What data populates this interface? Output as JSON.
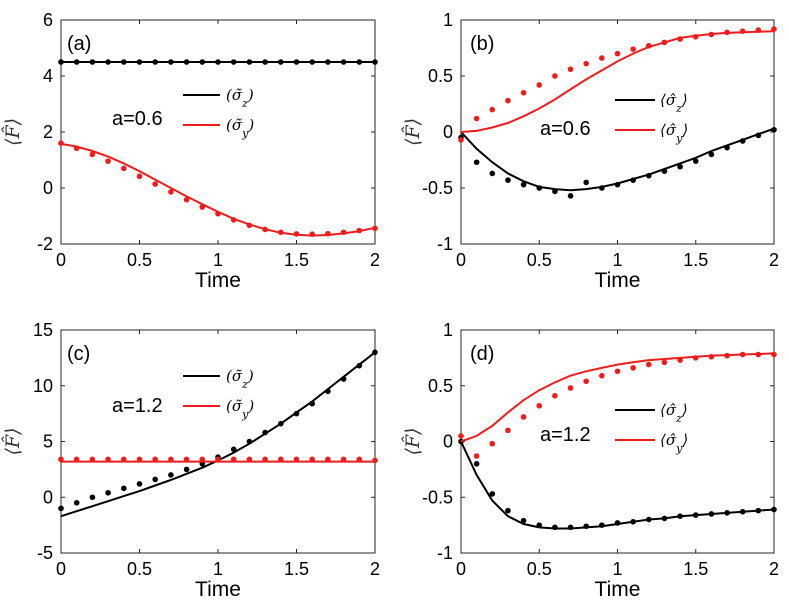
{
  "figure": {
    "xlabel": "Time",
    "ylabel": "⟨F̂⟩"
  },
  "colors": {
    "black": "#000000",
    "red": "#ee1c1c"
  },
  "chart_data": [
    {
      "type": "line",
      "label": "(a)",
      "annotation": "a=0.6",
      "legend_style": "tilde",
      "xlim": [
        0,
        2
      ],
      "ylim": [
        -2,
        6
      ],
      "xticks": [
        0,
        0.5,
        1,
        1.5,
        2
      ],
      "yticks": [
        -2,
        0,
        2,
        4,
        6
      ],
      "xticklabels": [
        "0",
        "0.5",
        "1",
        "1.5",
        "2"
      ],
      "yticklabels": [
        "-2",
        "0",
        "2",
        "4",
        "6"
      ],
      "legend": [
        "(σ̃z)",
        "(σ̃y)"
      ],
      "series": [
        {
          "name": "(σ̃z)",
          "color": "black",
          "line": {
            "x": [
              0,
              0.5,
              1,
              1.5,
              2
            ],
            "y": [
              4.5,
              4.5,
              4.5,
              4.5,
              4.5
            ]
          },
          "points": {
            "x": [
              0,
              0.1,
              0.2,
              0.3,
              0.4,
              0.5,
              0.6,
              0.7,
              0.8,
              0.9,
              1.0,
              1.1,
              1.2,
              1.3,
              1.4,
              1.5,
              1.6,
              1.7,
              1.8,
              1.9,
              2.0
            ],
            "y": [
              4.5,
              4.5,
              4.5,
              4.5,
              4.5,
              4.5,
              4.5,
              4.5,
              4.5,
              4.5,
              4.5,
              4.5,
              4.5,
              4.5,
              4.5,
              4.5,
              4.5,
              4.5,
              4.5,
              4.5,
              4.5
            ]
          }
        },
        {
          "name": "(σ̃y)",
          "color": "red",
          "line": {
            "x": [
              0,
              0.1,
              0.2,
              0.3,
              0.4,
              0.5,
              0.6,
              0.7,
              0.8,
              0.9,
              1.0,
              1.1,
              1.2,
              1.3,
              1.4,
              1.5,
              1.6,
              1.7,
              1.8,
              1.9,
              2.0
            ],
            "y": [
              1.58,
              1.48,
              1.32,
              1.12,
              0.88,
              0.6,
              0.3,
              0.0,
              -0.3,
              -0.58,
              -0.85,
              -1.1,
              -1.3,
              -1.47,
              -1.6,
              -1.67,
              -1.7,
              -1.68,
              -1.62,
              -1.54,
              -1.42
            ]
          },
          "points": {
            "x": [
              0,
              0.1,
              0.2,
              0.3,
              0.4,
              0.5,
              0.6,
              0.7,
              0.8,
              0.9,
              1.0,
              1.1,
              1.2,
              1.3,
              1.4,
              1.5,
              1.6,
              1.7,
              1.8,
              1.9,
              2.0
            ],
            "y": [
              1.6,
              1.42,
              1.2,
              0.96,
              0.7,
              0.42,
              0.14,
              -0.14,
              -0.42,
              -0.68,
              -0.92,
              -1.14,
              -1.33,
              -1.48,
              -1.58,
              -1.64,
              -1.65,
              -1.63,
              -1.58,
              -1.52,
              -1.44
            ]
          }
        }
      ]
    },
    {
      "type": "line",
      "label": "(b)",
      "annotation": "a=0.6",
      "legend_style": "hat",
      "xlim": [
        0,
        2
      ],
      "ylim": [
        -1,
        1
      ],
      "xticks": [
        0,
        0.5,
        1,
        1.5,
        2
      ],
      "yticks": [
        -1,
        -0.5,
        0,
        0.5,
        1
      ],
      "xticklabels": [
        "0",
        "0.5",
        "1",
        "1.5",
        "2"
      ],
      "yticklabels": [
        "-1",
        "-0.5",
        "0",
        "0.5",
        "1"
      ],
      "legend": [
        "⟨σ̂z⟩",
        "⟨σ̂y⟩"
      ],
      "series": [
        {
          "name": "⟨σ̂z⟩",
          "color": "black",
          "line": {
            "x": [
              0,
              0.1,
              0.2,
              0.3,
              0.4,
              0.5,
              0.6,
              0.7,
              0.8,
              0.9,
              1.0,
              1.1,
              1.2,
              1.3,
              1.4,
              1.5,
              1.6,
              1.7,
              1.8,
              1.9,
              2.0
            ],
            "y": [
              0.0,
              -0.15,
              -0.27,
              -0.37,
              -0.44,
              -0.49,
              -0.51,
              -0.52,
              -0.51,
              -0.49,
              -0.46,
              -0.42,
              -0.38,
              -0.33,
              -0.28,
              -0.23,
              -0.17,
              -0.12,
              -0.07,
              -0.02,
              0.03
            ]
          },
          "points": {
            "x": [
              0,
              0.1,
              0.2,
              0.3,
              0.4,
              0.5,
              0.6,
              0.7,
              0.8,
              0.9,
              1.0,
              1.1,
              1.2,
              1.3,
              1.4,
              1.5,
              1.6,
              1.7,
              1.8,
              1.9,
              2.0
            ],
            "y": [
              -0.05,
              -0.27,
              -0.37,
              -0.43,
              -0.47,
              -0.5,
              -0.53,
              -0.57,
              -0.45,
              -0.5,
              -0.47,
              -0.43,
              -0.39,
              -0.35,
              -0.31,
              -0.26,
              -0.2,
              -0.14,
              -0.08,
              -0.03,
              0.02
            ]
          }
        },
        {
          "name": "⟨σ̂y⟩",
          "color": "red",
          "line": {
            "x": [
              0,
              0.1,
              0.2,
              0.3,
              0.4,
              0.5,
              0.6,
              0.7,
              0.8,
              0.9,
              1.0,
              1.1,
              1.2,
              1.3,
              1.4,
              1.5,
              1.6,
              1.7,
              1.8,
              1.9,
              2.0
            ],
            "y": [
              0.0,
              0.01,
              0.04,
              0.08,
              0.14,
              0.21,
              0.29,
              0.38,
              0.47,
              0.55,
              0.63,
              0.7,
              0.76,
              0.8,
              0.84,
              0.86,
              0.875,
              0.885,
              0.89,
              0.895,
              0.9
            ]
          },
          "points": {
            "x": [
              0,
              0.1,
              0.2,
              0.3,
              0.4,
              0.5,
              0.6,
              0.7,
              0.8,
              0.9,
              1.0,
              1.1,
              1.2,
              1.3,
              1.4,
              1.5,
              1.6,
              1.7,
              1.8,
              1.9,
              2.0
            ],
            "y": [
              -0.07,
              0.12,
              0.2,
              0.28,
              0.35,
              0.42,
              0.5,
              0.56,
              0.61,
              0.66,
              0.7,
              0.74,
              0.77,
              0.8,
              0.83,
              0.85,
              0.87,
              0.89,
              0.9,
              0.91,
              0.92
            ]
          }
        }
      ]
    },
    {
      "type": "line",
      "label": "(c)",
      "annotation": "a=1.2",
      "legend_style": "tilde",
      "xlim": [
        0,
        2
      ],
      "ylim": [
        -5,
        15
      ],
      "xticks": [
        0,
        0.5,
        1,
        1.5,
        2
      ],
      "yticks": [
        -5,
        0,
        5,
        10,
        15
      ],
      "xticklabels": [
        "0",
        "0.5",
        "1",
        "1.5",
        "2"
      ],
      "yticklabels": [
        "-5",
        "0",
        "5",
        "10",
        "15"
      ],
      "legend": [
        "(σ̃z)",
        "(σ̃y)"
      ],
      "series": [
        {
          "name": "(σ̃z)",
          "color": "black",
          "line": {
            "x": [
              0,
              0.1,
              0.2,
              0.3,
              0.4,
              0.5,
              0.6,
              0.7,
              0.8,
              0.9,
              1.0,
              1.1,
              1.2,
              1.3,
              1.4,
              1.5,
              1.6,
              1.7,
              1.8,
              1.9,
              2.0
            ],
            "y": [
              -1.7,
              -1.25,
              -0.8,
              -0.35,
              0.1,
              0.55,
              1.05,
              1.55,
              2.1,
              2.65,
              3.3,
              4.0,
              4.8,
              5.7,
              6.6,
              7.6,
              8.6,
              9.7,
              10.8,
              11.9,
              13.0
            ]
          },
          "points": {
            "x": [
              0,
              0.1,
              0.2,
              0.3,
              0.4,
              0.5,
              0.6,
              0.7,
              0.8,
              0.9,
              1.0,
              1.1,
              1.2,
              1.3,
              1.4,
              1.5,
              1.6,
              1.7,
              1.8,
              1.9,
              2.0
            ],
            "y": [
              -1.0,
              -0.5,
              0.0,
              0.4,
              0.8,
              1.2,
              1.6,
              2.0,
              2.5,
              3.0,
              3.6,
              4.3,
              5.0,
              5.8,
              6.6,
              7.5,
              8.4,
              9.5,
              10.6,
              11.8,
              13.0
            ]
          }
        },
        {
          "name": "(σ̃y)",
          "color": "red",
          "line": {
            "x": [
              0,
              0.5,
              1,
              1.5,
              2
            ],
            "y": [
              3.2,
              3.2,
              3.2,
              3.2,
              3.2
            ]
          },
          "points": {
            "x": [
              0,
              0.1,
              0.2,
              0.3,
              0.4,
              0.5,
              0.6,
              0.7,
              0.8,
              0.9,
              1.0,
              1.1,
              1.2,
              1.3,
              1.4,
              1.5,
              1.6,
              1.7,
              1.8,
              1.9,
              2.0
            ],
            "y": [
              3.4,
              3.4,
              3.4,
              3.4,
              3.4,
              3.4,
              3.4,
              3.4,
              3.4,
              3.4,
              3.4,
              3.4,
              3.4,
              3.4,
              3.4,
              3.4,
              3.4,
              3.4,
              3.4,
              3.4,
              3.3
            ]
          }
        }
      ]
    },
    {
      "type": "line",
      "label": "(d)",
      "annotation": "a=1.2",
      "legend_style": "hat",
      "xlim": [
        0,
        2
      ],
      "ylim": [
        -1,
        1
      ],
      "xticks": [
        0,
        0.5,
        1,
        1.5,
        2
      ],
      "yticks": [
        -1,
        -0.5,
        0,
        0.5,
        1
      ],
      "xticklabels": [
        "0",
        "0.5",
        "1",
        "1.5",
        "2"
      ],
      "yticklabels": [
        "-1",
        "-0.5",
        "0",
        "0.5",
        "1"
      ],
      "legend": [
        "⟨σ̂z⟩",
        "⟨σ̂y⟩"
      ],
      "series": [
        {
          "name": "⟨σ̂z⟩",
          "color": "black",
          "line": {
            "x": [
              0,
              0.1,
              0.2,
              0.3,
              0.4,
              0.5,
              0.6,
              0.7,
              0.8,
              0.9,
              1.0,
              1.1,
              1.2,
              1.3,
              1.4,
              1.5,
              1.6,
              1.7,
              1.8,
              1.9,
              2.0
            ],
            "y": [
              0.0,
              -0.3,
              -0.53,
              -0.67,
              -0.74,
              -0.77,
              -0.78,
              -0.78,
              -0.77,
              -0.76,
              -0.74,
              -0.72,
              -0.7,
              -0.69,
              -0.67,
              -0.66,
              -0.65,
              -0.64,
              -0.63,
              -0.62,
              -0.61
            ]
          },
          "points": {
            "x": [
              0,
              0.1,
              0.2,
              0.3,
              0.4,
              0.5,
              0.6,
              0.7,
              0.8,
              0.9,
              1.0,
              1.1,
              1.2,
              1.3,
              1.4,
              1.5,
              1.6,
              1.7,
              1.8,
              1.9,
              2.0
            ],
            "y": [
              0.0,
              -0.2,
              -0.47,
              -0.62,
              -0.71,
              -0.75,
              -0.77,
              -0.77,
              -0.76,
              -0.75,
              -0.73,
              -0.72,
              -0.7,
              -0.69,
              -0.67,
              -0.66,
              -0.65,
              -0.64,
              -0.63,
              -0.62,
              -0.61
            ]
          }
        },
        {
          "name": "⟨σ̂y⟩",
          "color": "red",
          "line": {
            "x": [
              0,
              0.1,
              0.2,
              0.3,
              0.4,
              0.5,
              0.6,
              0.7,
              0.8,
              0.9,
              1.0,
              1.1,
              1.2,
              1.3,
              1.4,
              1.5,
              1.6,
              1.7,
              1.8,
              1.9,
              2.0
            ],
            "y": [
              0.0,
              0.05,
              0.14,
              0.26,
              0.37,
              0.46,
              0.53,
              0.59,
              0.63,
              0.66,
              0.69,
              0.71,
              0.73,
              0.74,
              0.75,
              0.76,
              0.77,
              0.775,
              0.78,
              0.785,
              0.79
            ]
          },
          "points": {
            "x": [
              0,
              0.1,
              0.2,
              0.3,
              0.4,
              0.5,
              0.6,
              0.7,
              0.8,
              0.9,
              1.0,
              1.1,
              1.2,
              1.3,
              1.4,
              1.5,
              1.6,
              1.7,
              1.8,
              1.9,
              2.0
            ],
            "y": [
              0.05,
              -0.13,
              -0.02,
              0.1,
              0.22,
              0.32,
              0.41,
              0.48,
              0.54,
              0.59,
              0.63,
              0.66,
              0.69,
              0.71,
              0.73,
              0.75,
              0.76,
              0.77,
              0.78,
              0.78,
              0.78
            ]
          }
        }
      ]
    }
  ]
}
